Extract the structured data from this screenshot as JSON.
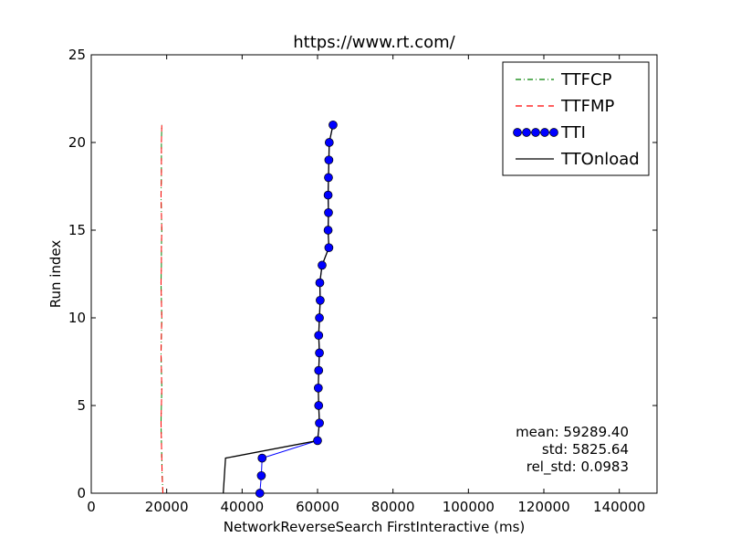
{
  "chart_data": {
    "type": "line",
    "title": "https://www.rt.com/",
    "xlabel": "NetworkReverseSearch FirstInteractive (ms)",
    "ylabel": "Run index",
    "xlim": [
      0,
      150000
    ],
    "ylim": [
      0,
      25
    ],
    "xticks": [
      0,
      20000,
      40000,
      60000,
      80000,
      100000,
      120000,
      140000
    ],
    "yticks": [
      0,
      5,
      10,
      15,
      20,
      25
    ],
    "grid": false,
    "legend_position": "top-right",
    "series": [
      {
        "name": "TTFCP",
        "style": "dash-dot",
        "color": "#008000",
        "x": [
          19000,
          18800,
          18700,
          18600,
          18500,
          18600,
          18700,
          18600,
          18500,
          18600,
          18700,
          18600,
          18500,
          18600,
          18600,
          18700,
          18600,
          18500,
          18600,
          18600,
          18600,
          18700
        ],
        "y": [
          0,
          1,
          2,
          3,
          4,
          5,
          6,
          7,
          8,
          9,
          10,
          11,
          12,
          13,
          14,
          15,
          16,
          17,
          18,
          19,
          20,
          21
        ]
      },
      {
        "name": "TTFMP",
        "style": "dashed",
        "color": "#ff0000",
        "x": [
          19000,
          18800,
          18700,
          18600,
          18500,
          18600,
          18700,
          18600,
          18500,
          18600,
          18700,
          18600,
          18500,
          18600,
          18600,
          18700,
          18600,
          18500,
          18600,
          18600,
          18600,
          18700
        ],
        "y": [
          0,
          1,
          2,
          3,
          4,
          5,
          6,
          7,
          8,
          9,
          10,
          11,
          12,
          13,
          14,
          15,
          16,
          17,
          18,
          19,
          20,
          21
        ]
      },
      {
        "name": "TTI",
        "style": "line-marker",
        "color": "#0000ff",
        "x": [
          44700,
          45100,
          45300,
          60000,
          60500,
          60300,
          60200,
          60300,
          60500,
          60300,
          60500,
          60700,
          60600,
          61200,
          63000,
          62800,
          62900,
          62800,
          62900,
          63000,
          63100,
          64100
        ],
        "y": [
          0,
          1,
          2,
          3,
          4,
          5,
          6,
          7,
          8,
          9,
          10,
          11,
          12,
          13,
          14,
          15,
          16,
          17,
          18,
          19,
          20,
          21
        ]
      },
      {
        "name": "TTOnload",
        "style": "solid",
        "color": "#000000",
        "x": [
          35000,
          35300,
          35600,
          60000,
          60500,
          60300,
          60200,
          60300,
          60500,
          60300,
          60500,
          60700,
          60600,
          61200,
          63000,
          62800,
          62900,
          62800,
          62900,
          63000,
          63100,
          64100
        ],
        "y": [
          0,
          1,
          2,
          3,
          4,
          5,
          6,
          7,
          8,
          9,
          10,
          11,
          12,
          13,
          14,
          15,
          16,
          17,
          18,
          19,
          20,
          21
        ]
      }
    ],
    "annotations": [
      "mean: 59289.40",
      "std: 5825.64",
      "rel_std: 0.0983"
    ]
  }
}
